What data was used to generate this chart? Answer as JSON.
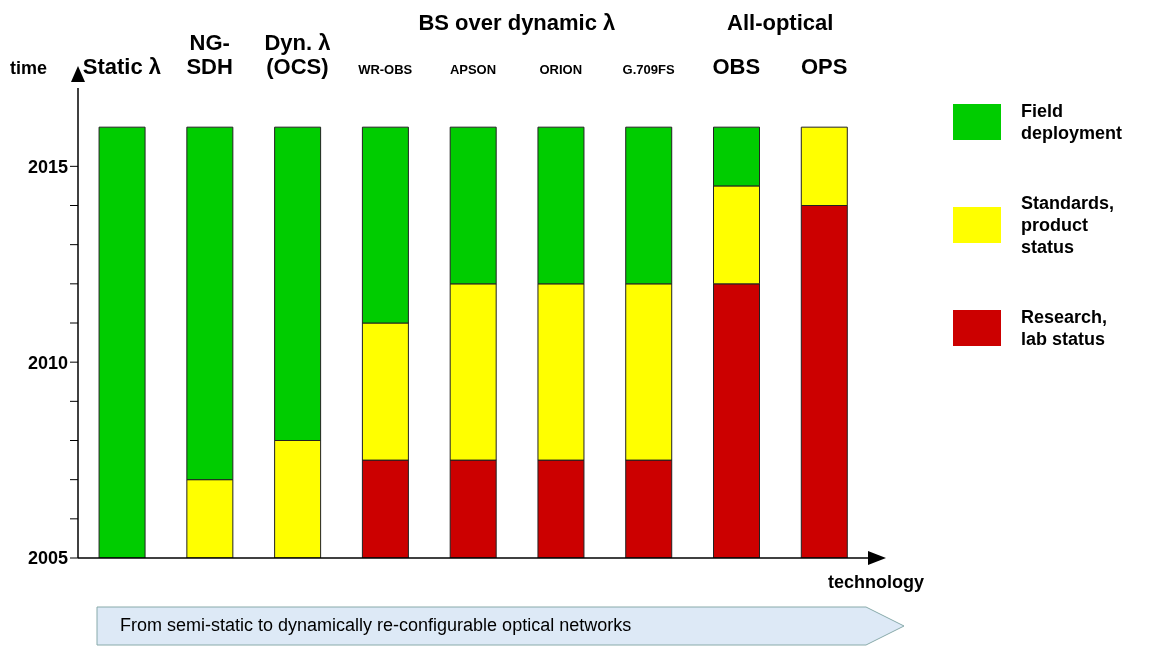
{
  "chart_data": {
    "type": "bar",
    "xlabel": "technology",
    "ylabel": "time",
    "categories": [
      "Static λ",
      "NG-SDH",
      "Dyn. λ (OCS)",
      "WR-OBS",
      "APSON",
      "ORION",
      "G.709FS",
      "OBS",
      "OPS"
    ],
    "series": [
      {
        "name": "Research, lab status",
        "color": "#cc0000",
        "base": [
          null,
          null,
          null,
          2005,
          2005,
          2005,
          2005,
          2005,
          2005
        ],
        "values": [
          null,
          null,
          null,
          2.5,
          2.5,
          2.5,
          2.5,
          7,
          9
        ]
      },
      {
        "name": "Standards, product status",
        "color": "#ffff00",
        "base": [
          null,
          2005,
          2005,
          2007.5,
          2007.5,
          2007.5,
          2007.5,
          2012,
          2014
        ],
        "values": [
          null,
          2,
          3,
          3.5,
          4.5,
          4.5,
          4.5,
          2.5,
          2
        ]
      },
      {
        "name": "Field deployment",
        "color": "#00cc00",
        "base": [
          2005,
          2007,
          2008,
          2011,
          2012,
          2012,
          2012,
          2014.5,
          null
        ],
        "values": [
          11,
          9,
          8,
          5,
          4,
          4,
          4,
          1.5,
          null
        ]
      }
    ],
    "ylim": [
      2005,
      2017
    ],
    "yticks": [
      2005,
      {
        "value": 2006,
        "label": null
      },
      {
        "value": 2007,
        "label": null
      },
      {
        "value": 2008,
        "label": null
      },
      {
        "value": 2009,
        "label": null
      },
      2010,
      {
        "value": 2011,
        "label": null
      },
      {
        "value": 2012,
        "label": null
      },
      {
        "value": 2013,
        "label": null
      },
      {
        "value": 2014,
        "label": null
      },
      2015
    ],
    "annotations": [
      "BS over dynamic λ",
      "All-optical",
      "From semi-static to dynamically re-configurable optical networks"
    ],
    "legend": "right",
    "grid": false
  }
}
